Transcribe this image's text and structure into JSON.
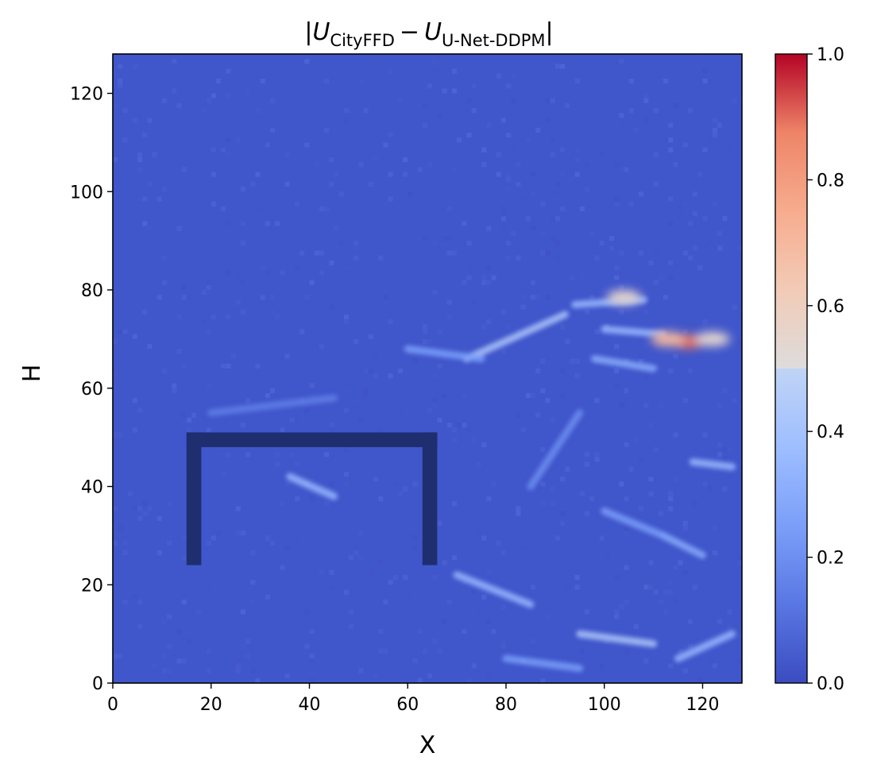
{
  "chart_data": {
    "type": "heatmap",
    "title": {
      "bar_left": "|",
      "u1": "U",
      "sub1": "CityFFD",
      "minus": "−",
      "u2": "U",
      "sub2": "U-Net-DDPM",
      "bar_right": "|"
    },
    "xlabel": "X",
    "ylabel": "H",
    "xlim": [
      0,
      128
    ],
    "ylim": [
      0,
      128
    ],
    "xticks": [
      0,
      20,
      40,
      60,
      80,
      100,
      120
    ],
    "yticks": [
      0,
      20,
      40,
      60,
      80,
      100,
      120
    ],
    "colormap": "coolwarm",
    "colorbar": {
      "range": [
        0,
        1
      ],
      "ticks": [
        "0.0",
        "0.2",
        "0.4",
        "0.6",
        "0.8",
        "1.0"
      ],
      "low_color": "#3b4cc0",
      "mid_color": "#dddddd",
      "high_color": "#b40426"
    },
    "background_value": 0.04,
    "building_outline": {
      "shape": "inverted U",
      "x_range": [
        15,
        66
      ],
      "y_range": [
        24,
        51
      ],
      "thickness": 3,
      "color": "#1f2e6e"
    },
    "hotspots": [
      {
        "x": 117,
        "y": 69.5,
        "value": 0.9
      },
      {
        "x": 113,
        "y": 70,
        "value": 0.7
      },
      {
        "x": 104,
        "y": 78.5,
        "value": 0.55
      },
      {
        "x": 122,
        "y": 70,
        "value": 0.55
      }
    ],
    "streaks": [
      {
        "x1": 72,
        "y1": 66,
        "x2": 92,
        "y2": 75,
        "value": 0.4
      },
      {
        "x1": 94,
        "y1": 77,
        "x2": 108,
        "y2": 78,
        "value": 0.35
      },
      {
        "x1": 100,
        "y1": 72,
        "x2": 112,
        "y2": 71,
        "value": 0.35
      },
      {
        "x1": 98,
        "y1": 66,
        "x2": 110,
        "y2": 64,
        "value": 0.3
      },
      {
        "x1": 60,
        "y1": 68,
        "x2": 75,
        "y2": 66,
        "value": 0.25
      },
      {
        "x1": 36,
        "y1": 42,
        "x2": 45,
        "y2": 38,
        "value": 0.35
      },
      {
        "x1": 70,
        "y1": 22,
        "x2": 85,
        "y2": 16,
        "value": 0.35
      },
      {
        "x1": 95,
        "y1": 10,
        "x2": 110,
        "y2": 8,
        "value": 0.4
      },
      {
        "x1": 112,
        "y1": 30,
        "x2": 120,
        "y2": 26,
        "value": 0.3
      },
      {
        "x1": 118,
        "y1": 45,
        "x2": 126,
        "y2": 44,
        "value": 0.35
      },
      {
        "x1": 100,
        "y1": 35,
        "x2": 112,
        "y2": 30,
        "value": 0.25
      },
      {
        "x1": 115,
        "y1": 5,
        "x2": 126,
        "y2": 10,
        "value": 0.35
      },
      {
        "x1": 80,
        "y1": 5,
        "x2": 95,
        "y2": 3,
        "value": 0.25
      },
      {
        "x1": 85,
        "y1": 40,
        "x2": 95,
        "y2": 55,
        "value": 0.2
      },
      {
        "x1": 20,
        "y1": 55,
        "x2": 45,
        "y2": 58,
        "value": 0.15
      }
    ]
  }
}
